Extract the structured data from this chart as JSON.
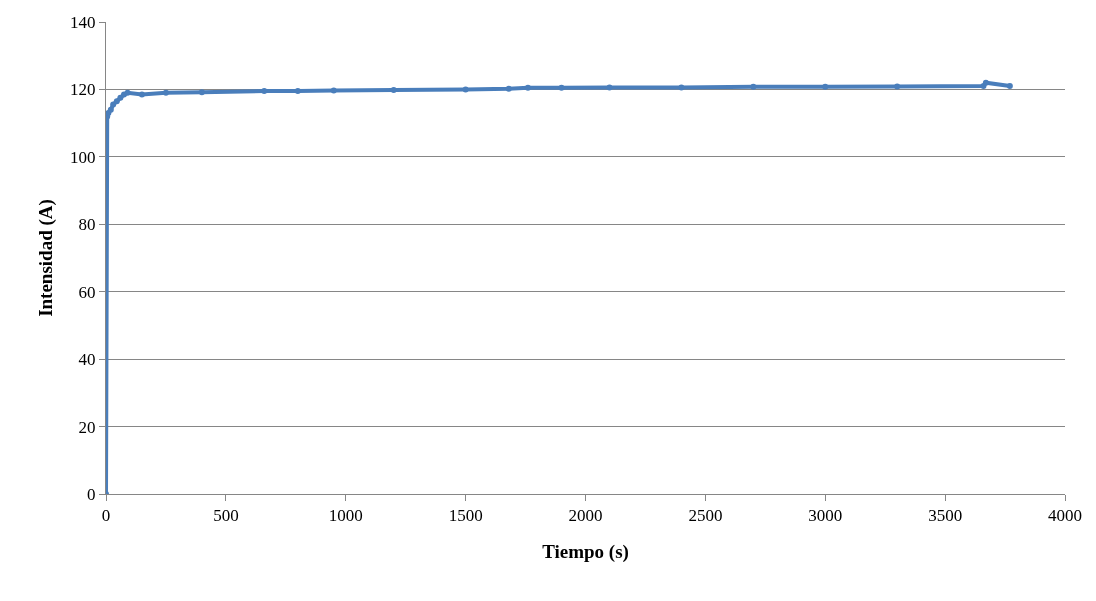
{
  "chart_data": {
    "type": "line",
    "xlabel": "Tiempo (s)",
    "ylabel": "Intensidad (A)",
    "x": [
      0,
      5,
      10,
      20,
      30,
      45,
      60,
      75,
      90,
      150,
      250,
      400,
      660,
      800,
      950,
      1200,
      1500,
      1680,
      1760,
      1900,
      2100,
      2400,
      2700,
      3000,
      3300,
      3660,
      3670,
      3770
    ],
    "series": [
      {
        "color": "#4a7ebb",
        "values": [
          0,
          112,
          113,
          114,
          115.5,
          116.5,
          117.5,
          118.5,
          119,
          118.5,
          119,
          119.2,
          119.5,
          119.5,
          119.7,
          119.8,
          120,
          120.2,
          120.5,
          120.5,
          120.6,
          120.6,
          120.8,
          120.8,
          120.9,
          121,
          122,
          121
        ]
      }
    ],
    "xlim": [
      0,
      4000
    ],
    "xticks": [
      0,
      500,
      1000,
      1500,
      2000,
      2500,
      3000,
      3500,
      4000
    ],
    "ylim": [
      0,
      140
    ],
    "yticks": [
      0,
      20,
      40,
      60,
      80,
      100,
      120,
      140
    ],
    "grid": "y",
    "marker": "circle",
    "line_style": "solid"
  }
}
